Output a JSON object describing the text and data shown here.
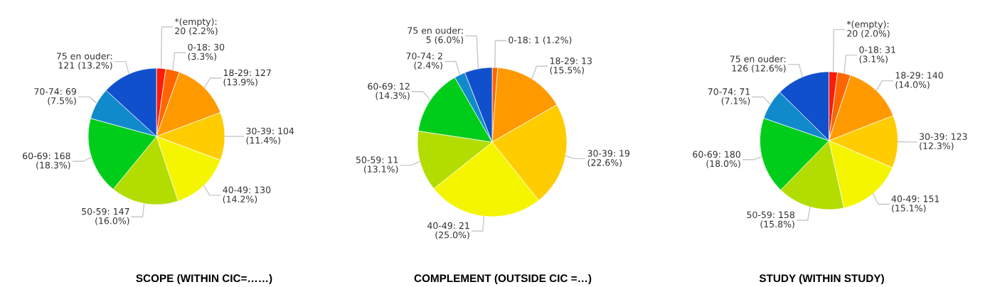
{
  "chart_data": [
    {
      "type": "pie",
      "title": "SCOPE (WITHIN CIC=……)",
      "categories": [
        "*(empty)",
        "0-18",
        "18-29",
        "30-39",
        "40-49",
        "50-59",
        "60-69",
        "70-74",
        "75 en ouder"
      ],
      "values": [
        20,
        30,
        127,
        104,
        130,
        147,
        168,
        69,
        121
      ],
      "value_labels": [
        ":\n20 (2.2%)",
        ": 30\n(3.3%)",
        ": 127\n(13.9%)",
        ": 104\n(11.4%)",
        ": 130\n(14.2%)",
        ": 147\n(16.0%)",
        ": 168\n(18.3%)",
        ": 69\n(7.5%)",
        ":\n121 (13.2%)"
      ],
      "colors": [
        "#ff1a0a",
        "#ff6600",
        "#ff9900",
        "#ffcc00",
        "#f5f500",
        "#b3dd00",
        "#00cc1a",
        "#118acc",
        "#1150cc"
      ]
    },
    {
      "type": "pie",
      "title": "COMPLEMENT (OUTSIDE CIC =…)",
      "categories": [
        "0-18",
        "18-29",
        "30-39",
        "40-49",
        "50-59",
        "60-69",
        "70-74",
        "75 en ouder"
      ],
      "values": [
        1,
        13,
        19,
        21,
        11,
        12,
        2,
        5
      ],
      "value_labels": [
        ": 1 (1.2%)",
        ": 13\n(15.5%)",
        ": 19\n(22.6%)",
        ": 21\n(25.0%)",
        ": 11\n(13.1%)",
        ": 12\n(14.3%)",
        ": 2\n(2.4%)",
        ":\n5 (6.0%)"
      ],
      "colors": [
        "#ff6600",
        "#ff9900",
        "#ffcc00",
        "#f5f500",
        "#b3dd00",
        "#00cc1a",
        "#118acc",
        "#1150cc"
      ]
    },
    {
      "type": "pie",
      "title": "STUDY (WITHIN STUDY)",
      "categories": [
        "*(empty)",
        "0-18",
        "18-29",
        "30-39",
        "40-49",
        "50-59",
        "60-69",
        "70-74",
        "75 en ouder"
      ],
      "values": [
        20,
        31,
        140,
        123,
        151,
        158,
        180,
        71,
        126
      ],
      "value_labels": [
        ":\n20 (2.0%)",
        ": 31\n(3.1%)",
        ": 140\n(14.0%)",
        ": 123\n(12.3%)",
        ": 151\n(15.1%)",
        ": 158\n(15.8%)",
        ": 180\n(18.0%)",
        ": 71\n(7.1%)",
        ":\n126 (12.6%)"
      ],
      "colors": [
        "#ff1a0a",
        "#ff6600",
        "#ff9900",
        "#ffcc00",
        "#f5f500",
        "#b3dd00",
        "#00cc1a",
        "#118acc",
        "#1150cc"
      ]
    }
  ]
}
